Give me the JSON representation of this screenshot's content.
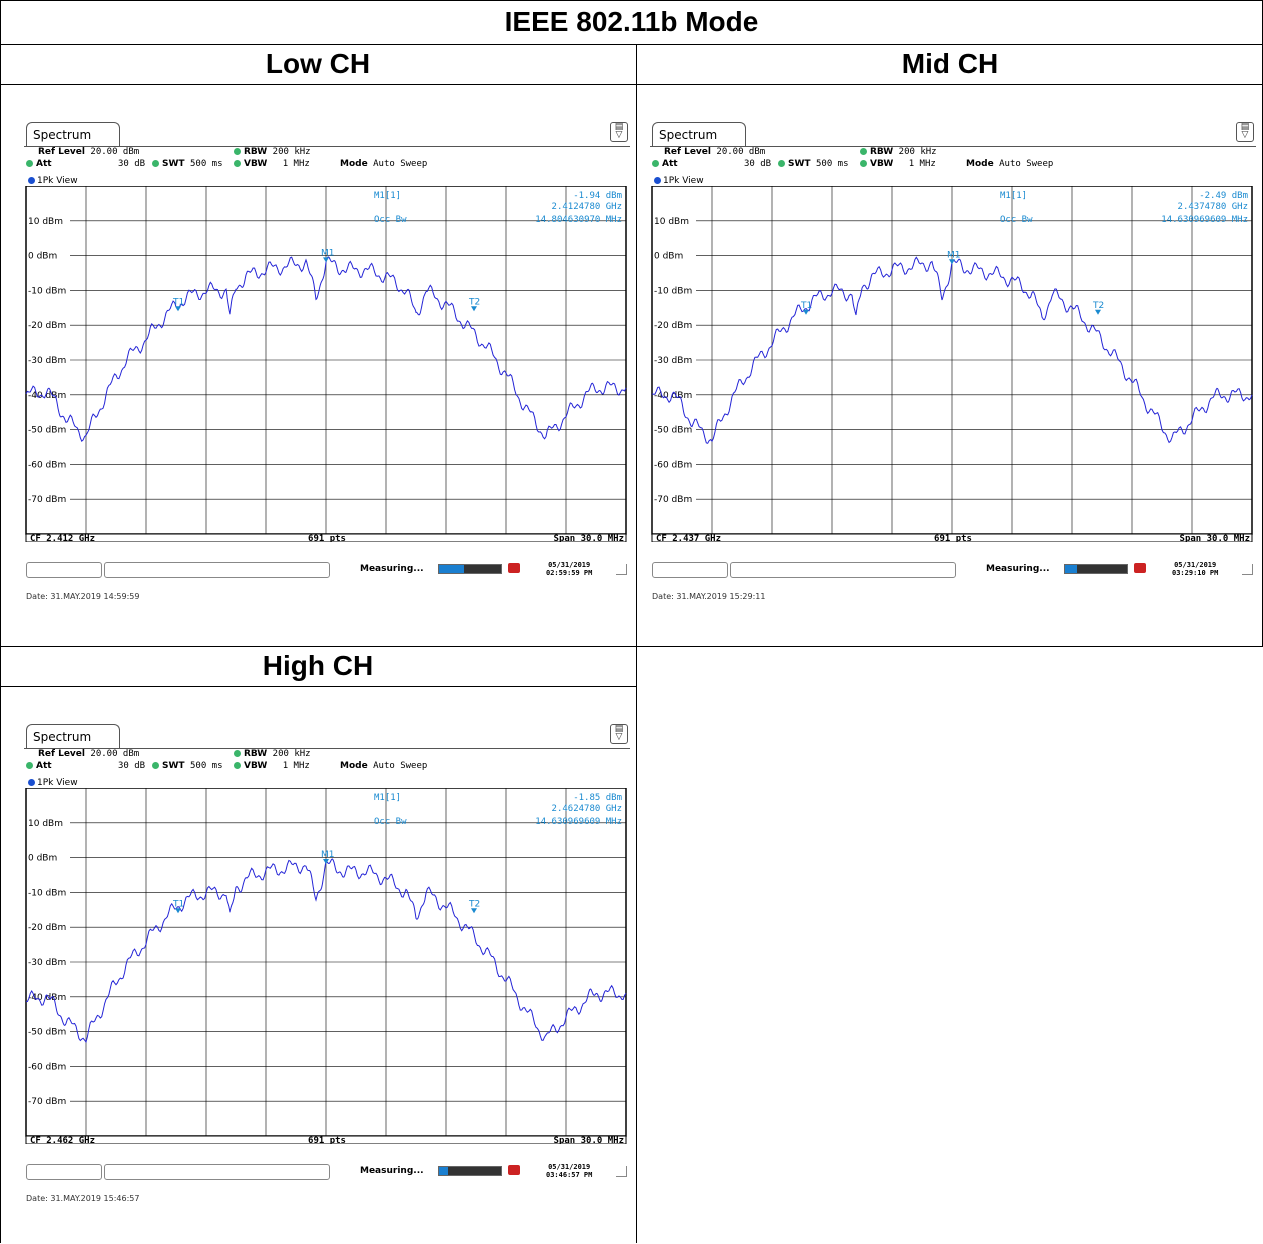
{
  "title": "IEEE 802.11b Mode",
  "icons": {
    "menu": "menu-icon",
    "grip": "resize-grip-icon",
    "flag": "status-flag-icon"
  },
  "colors": {
    "trace": "#2424d6",
    "marker": "#1a8ad0",
    "grid": "#000000",
    "status_dot": "#3ab56a"
  },
  "panels": [
    {
      "label": "Low CH",
      "tab": "Spectrum",
      "ref_level_label": "Ref Level",
      "ref_level": "20.00 dBm",
      "att_label": "Att",
      "att": "30 dB",
      "swt_label": "SWT",
      "swt": "500 ms",
      "rbw_label": "RBW",
      "rbw": "200 kHz",
      "vbw_label": "VBW",
      "vbw": "1 MHz",
      "mode_label": "Mode",
      "mode": "Auto Sweep",
      "view": "1Pk View",
      "marker_label": "M1[1]",
      "marker_level": "-1.94 dBm",
      "marker_freq": "2.4124780 GHz",
      "occbw_label": "Occ Bw",
      "occbw": "14.804630970 MHz",
      "cf": "CF 2.412 GHz",
      "pts": "691 pts",
      "span": "Span 30.0 MHz",
      "status": "Measuring...",
      "date_top": "05/31/2019",
      "date_bot": "02:59:59 PM",
      "datestamp": "Date: 31.MAY.2019  14:59:59",
      "progress": 0.4
    },
    {
      "label": "Mid CH",
      "tab": "Spectrum",
      "ref_level_label": "Ref Level",
      "ref_level": "20.00 dBm",
      "att_label": "Att",
      "att": "30 dB",
      "swt_label": "SWT",
      "swt": "500 ms",
      "rbw_label": "RBW",
      "rbw": "200 kHz",
      "vbw_label": "VBW",
      "vbw": "1 MHz",
      "mode_label": "Mode",
      "mode": "Auto Sweep",
      "view": "1Pk View",
      "marker_label": "M1[1]",
      "marker_level": "-2.49 dBm",
      "marker_freq": "2.4374780 GHz",
      "occbw_label": "Occ Bw",
      "occbw": "14.630969609 MHz",
      "cf": "CF 2.437 GHz",
      "pts": "691 pts",
      "span": "Span 30.0 MHz",
      "status": "Measuring...",
      "date_top": "05/31/2019",
      "date_bot": "03:29:10 PM",
      "datestamp": "Date: 31.MAY.2019  15:29:11",
      "progress": 0.2
    },
    {
      "label": "High CH",
      "tab": "Spectrum",
      "ref_level_label": "Ref Level",
      "ref_level": "20.00 dBm",
      "att_label": "Att",
      "att": "30 dB",
      "swt_label": "SWT",
      "swt": "500 ms",
      "rbw_label": "RBW",
      "rbw": "200 kHz",
      "vbw_label": "VBW",
      "vbw": "1 MHz",
      "mode_label": "Mode",
      "mode": "Auto Sweep",
      "view": "1Pk View",
      "marker_label": "M1[1]",
      "marker_level": "-1.85 dBm",
      "marker_freq": "2.4624780 GHz",
      "occbw_label": "Occ Bw",
      "occbw": "14.630969609 MHz",
      "cf": "CF 2.462 GHz",
      "pts": "691 pts",
      "span": "Span 30.0 MHz",
      "status": "Measuring...",
      "date_top": "05/31/2019",
      "date_bot": "03:46:57 PM",
      "datestamp": "Date: 31.MAY.2019  15:46:57",
      "progress": 0.15
    }
  ],
  "chart_data": [
    {
      "type": "line",
      "center_freq_ghz": 2.412,
      "span_mhz": 30.0,
      "xlim_mhz": [
        -15,
        15
      ],
      "ylim": [
        -80,
        20
      ],
      "ytick_values": [
        10,
        0,
        -10,
        -20,
        -30,
        -40,
        -50,
        -60,
        -70
      ],
      "ytick_labels": [
        "10 dBm",
        "0 dBm",
        "-10 dBm",
        "-20 dBm",
        "-30 dBm",
        "-40 dBm",
        "-50 dBm",
        "-60 dBm",
        "-70 dBm"
      ],
      "grid": true,
      "series": [
        {
          "x": [
            -15,
            -14,
            -13.5,
            -13,
            -12,
            -11,
            -10,
            -9,
            -8,
            -7,
            -6,
            -5,
            -4.8,
            -4.5,
            -4,
            -3,
            -2,
            -1,
            -0.5,
            0,
            0.5,
            1,
            2,
            3,
            4,
            4.5,
            4.8,
            5,
            6,
            7,
            8,
            9,
            10,
            11,
            12,
            13,
            13.5,
            14,
            15
          ],
          "y": [
            -40,
            -39,
            -42,
            -47,
            -52,
            -40,
            -30,
            -24,
            -17,
            -12,
            -10,
            -10,
            -18,
            -9,
            -6,
            -4,
            -3,
            -2,
            -12,
            -1.9,
            -3,
            -4,
            -4,
            -6,
            -10,
            -17,
            -13,
            -10,
            -14,
            -20,
            -26,
            -34,
            -44,
            -52,
            -46,
            -40,
            -38,
            -38,
            -38
          ]
        }
      ],
      "markers": [
        {
          "label": "M1",
          "x": 0,
          "y": -1.94
        },
        {
          "label": "T1",
          "x": -7.4,
          "y": -16
        },
        {
          "label": "T2",
          "x": 7.4,
          "y": -16
        }
      ]
    },
    {
      "type": "line",
      "center_freq_ghz": 2.437,
      "span_mhz": 30.0,
      "xlim_mhz": [
        -15,
        15
      ],
      "ylim": [
        -80,
        20
      ],
      "ytick_values": [
        10,
        0,
        -10,
        -20,
        -30,
        -40,
        -50,
        -60,
        -70
      ],
      "ytick_labels": [
        "10 dBm",
        "0 dBm",
        "-10 dBm",
        "-20 dBm",
        "-30 dBm",
        "-40 dBm",
        "-50 dBm",
        "-60 dBm",
        "-70 dBm"
      ],
      "grid": true,
      "series": [
        {
          "x": [
            -15,
            -14,
            -13.5,
            -13,
            -12,
            -11,
            -10,
            -9,
            -8,
            -7,
            -6,
            -5,
            -4.8,
            -4.5,
            -4,
            -3,
            -2,
            -1,
            -0.5,
            0,
            0.5,
            1,
            2,
            3,
            4,
            4.5,
            4.8,
            5,
            6,
            7,
            8,
            9,
            10,
            11,
            12,
            13,
            13.5,
            14,
            15
          ],
          "y": [
            -40,
            -40,
            -43,
            -48,
            -53,
            -41,
            -32,
            -25,
            -18,
            -13,
            -10,
            -11,
            -19,
            -9,
            -6,
            -4,
            -3,
            -2,
            -12,
            -2.5,
            -3,
            -4,
            -5,
            -7,
            -11,
            -18,
            -14,
            -11,
            -15,
            -21,
            -28,
            -36,
            -45,
            -53,
            -47,
            -41,
            -40,
            -40,
            -40
          ]
        }
      ],
      "markers": [
        {
          "label": "M1",
          "x": 0,
          "y": -2.49
        },
        {
          "label": "T1",
          "x": -7.3,
          "y": -17
        },
        {
          "label": "T2",
          "x": 7.3,
          "y": -17
        }
      ]
    },
    {
      "type": "line",
      "center_freq_ghz": 2.462,
      "span_mhz": 30.0,
      "xlim_mhz": [
        -15,
        15
      ],
      "ylim": [
        -80,
        20
      ],
      "ytick_values": [
        10,
        0,
        -10,
        -20,
        -30,
        -40,
        -50,
        -60,
        -70
      ],
      "ytick_labels": [
        "10 dBm",
        "0 dBm",
        "-10 dBm",
        "-20 dBm",
        "-30 dBm",
        "-40 dBm",
        "-50 dBm",
        "-60 dBm",
        "-70 dBm"
      ],
      "grid": true,
      "series": [
        {
          "x": [
            -15,
            -14,
            -13.5,
            -13,
            -12,
            -11,
            -10,
            -9,
            -8,
            -7,
            -6,
            -5,
            -4.8,
            -4.5,
            -4,
            -3,
            -2,
            -1,
            -0.5,
            0,
            0.5,
            1,
            2,
            3,
            4,
            4.5,
            4.8,
            5,
            6,
            7,
            8,
            9,
            10,
            11,
            12,
            13,
            13.5,
            14,
            15
          ],
          "y": [
            -41,
            -40,
            -43,
            -47,
            -52,
            -41,
            -31,
            -24,
            -17,
            -12,
            -10,
            -10,
            -18,
            -9,
            -6,
            -4,
            -3,
            -2,
            -12,
            -1.85,
            -3,
            -4,
            -4,
            -6,
            -10,
            -17,
            -13,
            -10,
            -14,
            -20,
            -27,
            -35,
            -44,
            -52,
            -46,
            -41,
            -39,
            -39,
            -39
          ]
        }
      ],
      "markers": [
        {
          "label": "M1",
          "x": 0,
          "y": -1.85
        },
        {
          "label": "T1",
          "x": -7.4,
          "y": -16
        },
        {
          "label": "T2",
          "x": 7.4,
          "y": -16
        }
      ]
    }
  ]
}
